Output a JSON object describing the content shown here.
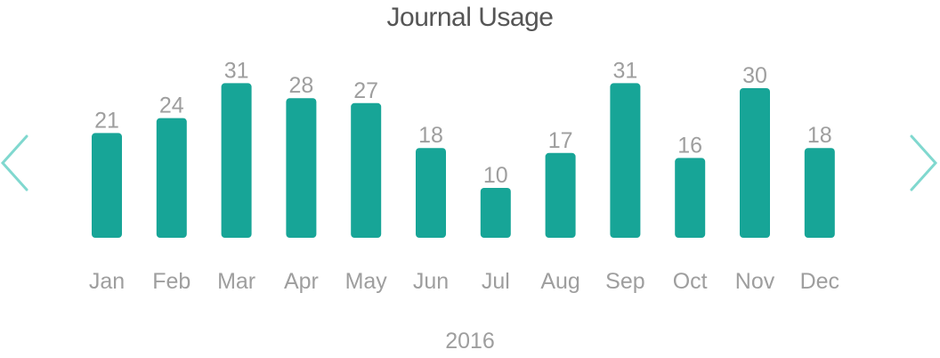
{
  "title": "Journal Usage",
  "year": "2016",
  "nav": {
    "prev_icon": "chevron-left-icon",
    "next_icon": "chevron-right-icon"
  },
  "colors": {
    "bar": "#17a597",
    "nav": "#80d8cf",
    "label": "#9e9e9e",
    "title": "#555555"
  },
  "chart_data": {
    "type": "bar",
    "title": "Journal Usage",
    "xlabel": "2016",
    "ylabel": "",
    "categories": [
      "Jan",
      "Feb",
      "Mar",
      "Apr",
      "May",
      "Jun",
      "Jul",
      "Aug",
      "Sep",
      "Oct",
      "Nov",
      "Dec"
    ],
    "values": [
      21,
      24,
      31,
      28,
      27,
      18,
      10,
      17,
      31,
      16,
      30,
      18
    ],
    "data_labels": [
      "21",
      "24",
      "31",
      "28",
      "27",
      "18",
      "10",
      "17",
      "31",
      "16",
      "30",
      "18"
    ],
    "grid": false,
    "legend": "none"
  }
}
